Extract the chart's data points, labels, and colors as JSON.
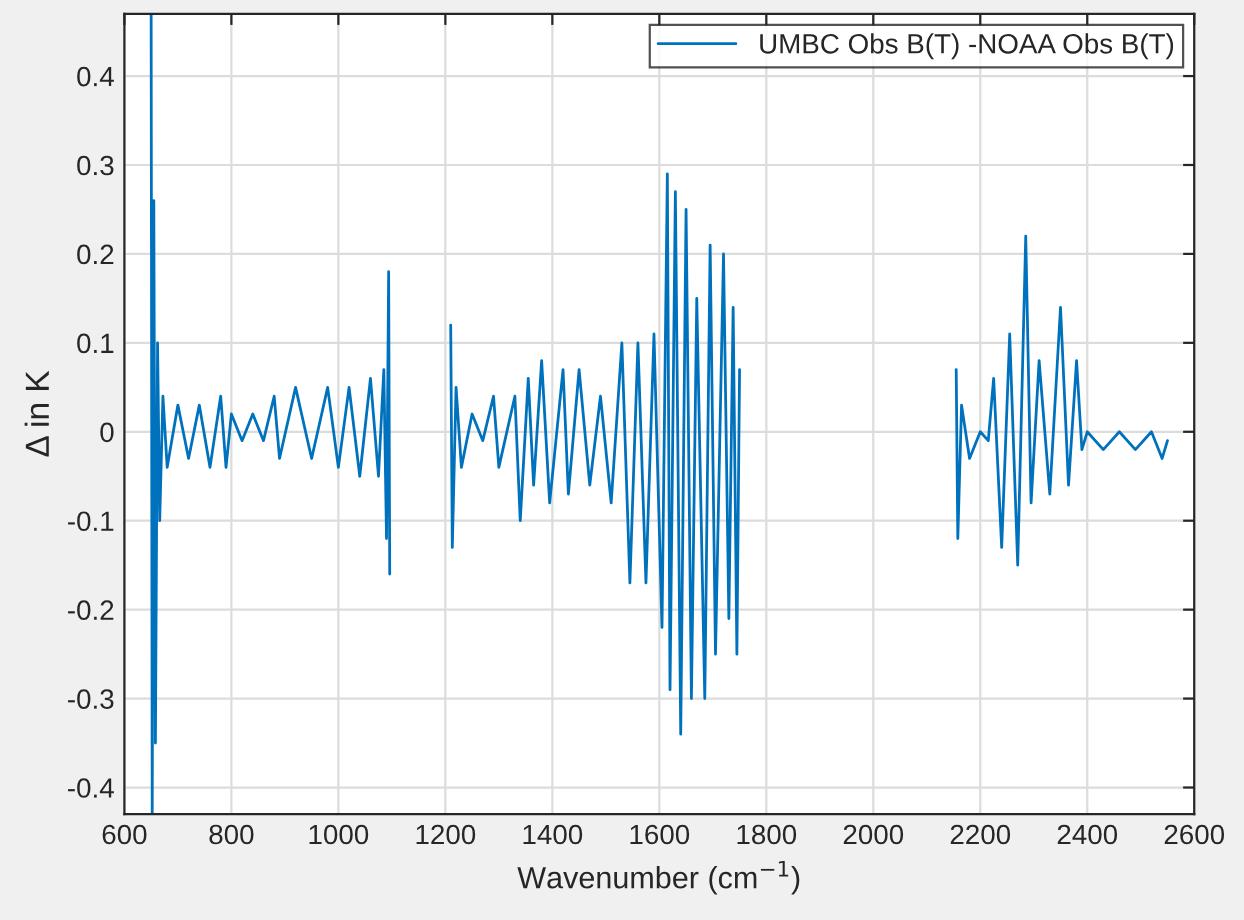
{
  "chart_data": {
    "type": "line",
    "xlabel": "Wavenumber (cm$^{−1}$)",
    "ylabel": "Δ in K",
    "xlim": [
      600,
      2600
    ],
    "ylim": [
      -0.43,
      0.47
    ],
    "xticks": [
      600,
      800,
      1000,
      1200,
      1400,
      1600,
      1800,
      2000,
      2200,
      2400,
      2600
    ],
    "yticks": [
      -0.4,
      -0.3,
      -0.2,
      -0.1,
      0,
      0.1,
      0.2,
      0.3,
      0.4
    ],
    "grid": true,
    "legend": "top right",
    "marker": "none",
    "line_style": "solid",
    "series": [
      {
        "name": "UMBC Obs B(T) -NOAA Obs B(T)",
        "color": "#0072bd",
        "x": [
          650,
          652,
          655,
          658,
          662,
          666,
          672,
          680,
          700,
          720,
          740,
          760,
          780,
          790,
          800,
          820,
          840,
          860,
          880,
          890,
          920,
          950,
          980,
          1000,
          1020,
          1040,
          1060,
          1075,
          1085,
          1090,
          1094,
          1096,
          1150,
          1210,
          1213,
          1220,
          1230,
          1250,
          1270,
          1290,
          1300,
          1330,
          1340,
          1355,
          1365,
          1380,
          1395,
          1420,
          1430,
          1450,
          1470,
          1490,
          1510,
          1530,
          1545,
          1560,
          1575,
          1590,
          1605,
          1615,
          1620,
          1630,
          1640,
          1650,
          1660,
          1670,
          1685,
          1695,
          1705,
          1720,
          1730,
          1738,
          1745,
          1750,
          1950,
          2155,
          2158,
          2165,
          2180,
          2200,
          2215,
          2225,
          2240,
          2255,
          2270,
          2285,
          2295,
          2310,
          2330,
          2350,
          2365,
          2380,
          2390,
          2400,
          2430,
          2460,
          2490,
          2520,
          2540,
          2550
        ],
        "values": [
          0.47,
          -0.43,
          0.26,
          -0.35,
          0.1,
          -0.1,
          0.04,
          -0.04,
          0.03,
          -0.03,
          0.03,
          -0.04,
          0.04,
          -0.04,
          0.02,
          -0.01,
          0.02,
          -0.01,
          0.04,
          -0.03,
          0.05,
          -0.03,
          0.05,
          -0.04,
          0.05,
          -0.05,
          0.06,
          -0.05,
          0.07,
          -0.12,
          0.18,
          -0.16,
          null,
          0.12,
          -0.13,
          0.05,
          -0.04,
          0.02,
          -0.01,
          0.04,
          -0.04,
          0.04,
          -0.1,
          0.06,
          -0.06,
          0.08,
          -0.08,
          0.07,
          -0.07,
          0.07,
          -0.06,
          0.04,
          -0.08,
          0.1,
          -0.17,
          0.1,
          -0.17,
          0.11,
          -0.22,
          0.29,
          -0.29,
          0.27,
          -0.34,
          0.25,
          -0.3,
          0.15,
          -0.3,
          0.21,
          -0.25,
          0.2,
          -0.21,
          0.14,
          -0.25,
          0.07,
          null,
          0.07,
          -0.12,
          0.03,
          -0.03,
          0,
          -0.01,
          0.06,
          -0.13,
          0.11,
          -0.15,
          0.22,
          -0.08,
          0.08,
          -0.07,
          0.14,
          -0.06,
          0.08,
          -0.02,
          0,
          -0.02,
          0,
          -0.02,
          0,
          -0.03,
          -0.01
        ]
      }
    ]
  }
}
